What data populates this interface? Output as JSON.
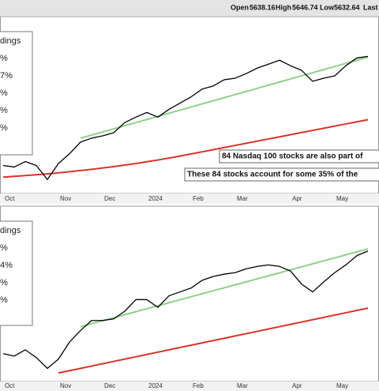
{
  "header": {
    "items": [
      "Open",
      "5638.16",
      "High",
      "5646.74",
      "Low",
      "5632.64",
      "Last"
    ]
  },
  "chart_data": [
    {
      "type": "line",
      "categories": [
        "Oct",
        null,
        null,
        null,
        null,
        "Nov",
        null,
        null,
        null,
        "Dec",
        null,
        null,
        null,
        "2024",
        null,
        null,
        null,
        "Feb",
        null,
        null,
        null,
        "Mar",
        null,
        null,
        null,
        null,
        "Apr",
        null,
        null,
        null,
        "May",
        null,
        null,
        null
      ],
      "series": [
        {
          "color": "#000000",
          "values": [
            4280,
            4264,
            4320,
            4280,
            4136,
            4300,
            4400,
            4520,
            4560,
            4584,
            4616,
            4720,
            4776,
            4824,
            4776,
            4856,
            4920,
            4984,
            5064,
            5096,
            5160,
            5176,
            5224,
            5280,
            5320,
            5360,
            5304,
            5256,
            5144,
            5176,
            5200,
            5304,
            5384,
            5400
          ]
        },
        {
          "color": "#8fd18a",
          "values": [
            null,
            null,
            null,
            null,
            null,
            null,
            null,
            4560,
            4592,
            4624,
            4656,
            4688,
            4720,
            4752,
            4784,
            4816,
            4848,
            4880,
            4912,
            4944,
            4976,
            5008,
            5040,
            5072,
            5104,
            5136,
            5168,
            5200,
            5232,
            5264,
            5296,
            5328,
            5360,
            5392
          ]
        },
        {
          "color": "#d9342b",
          "values": [
            4160,
            4168,
            4176,
            4184,
            4194,
            4204,
            4216,
            4228,
            4240,
            4254,
            4268,
            4284,
            4300,
            4318,
            4336,
            4356,
            4376,
            4398,
            4420,
            4442,
            4464,
            4486,
            4508,
            4530,
            4552,
            4574,
            4596,
            4618,
            4640,
            4662,
            4684,
            4706,
            4728,
            4750
          ]
        }
      ],
      "ylim": [
        4000,
        5800
      ],
      "legend_fragments": [
        "dings",
        "%",
        "7%",
        "%",
        "%",
        "%"
      ],
      "annotations": [
        "84 Nasdaq 100 stocks are also part of",
        "These 84 stocks account for some 35% of the"
      ]
    },
    {
      "type": "line",
      "categories": [
        "Oct",
        null,
        null,
        null,
        null,
        "Nov",
        null,
        null,
        null,
        "Dec",
        null,
        null,
        null,
        "2024",
        null,
        null,
        null,
        "Feb",
        null,
        null,
        null,
        "Mar",
        null,
        null,
        null,
        null,
        "Apr",
        null,
        null,
        null,
        "May",
        null,
        null,
        null
      ],
      "series": [
        {
          "color": "#000000",
          "values": [
            4280,
            4256,
            4320,
            4240,
            4128,
            4224,
            4400,
            4520,
            4624,
            4624,
            4640,
            4720,
            4840,
            4840,
            4760,
            4880,
            4920,
            4960,
            5040,
            5080,
            5104,
            5120,
            5160,
            5184,
            5200,
            5184,
            5136,
            5000,
            4920,
            5024,
            5120,
            5200,
            5296,
            5344
          ]
        },
        {
          "color": "#8fd18a",
          "values": [
            null,
            null,
            null,
            null,
            null,
            null,
            null,
            4560,
            4591,
            4622,
            4653,
            4684,
            4715,
            4746,
            4777,
            4808,
            4839,
            4870,
            4901,
            4932,
            4963,
            4994,
            5025,
            5056,
            5087,
            5118,
            5149,
            5180,
            5211,
            5242,
            5273,
            5304,
            5335,
            5366
          ]
        },
        {
          "color": "#d9342b",
          "values": [
            null,
            null,
            null,
            null,
            null,
            4080,
            4104,
            4128,
            4152,
            4176,
            4200,
            4224,
            4248,
            4272,
            4296,
            4320,
            4344,
            4368,
            4392,
            4416,
            4440,
            4464,
            4488,
            4512,
            4536,
            4560,
            4584,
            4608,
            4632,
            4656,
            4680,
            4704,
            4728,
            4752
          ]
        }
      ],
      "ylim": [
        4000,
        5800
      ],
      "legend_fragments": [
        "dings",
        "%",
        "4%",
        "%",
        "%"
      ]
    }
  ]
}
